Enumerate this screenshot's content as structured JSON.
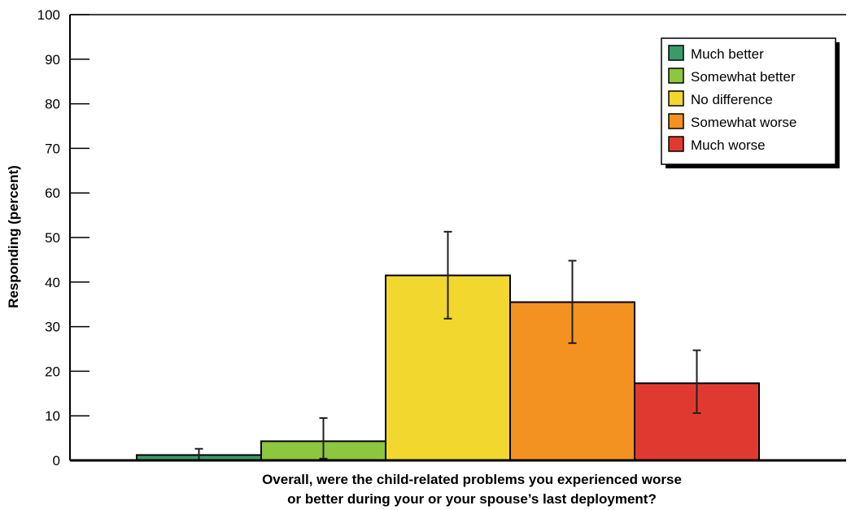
{
  "chart_data": {
    "type": "bar",
    "ylabel": "Responding (percent)",
    "xlabel_lines": [
      "Overall, were the child-related problems you experienced worse",
      "or better during your or your spouse’s last deployment?"
    ],
    "ylim": [
      0,
      100
    ],
    "yticks": [
      0,
      10,
      20,
      30,
      40,
      50,
      60,
      70,
      80,
      90,
      100
    ],
    "legend_position": "top-right",
    "series": [
      {
        "name": "Much better",
        "value": 1.2,
        "error_low": 0.1,
        "error_high": 2.6,
        "color": "#3a9b6a"
      },
      {
        "name": "Somewhat better",
        "value": 4.3,
        "error_low": 0.4,
        "error_high": 9.5,
        "color": "#8dc63f"
      },
      {
        "name": "No difference",
        "value": 41.5,
        "error_low": 31.8,
        "error_high": 51.3,
        "color": "#f2d82e"
      },
      {
        "name": "Somewhat worse",
        "value": 35.5,
        "error_low": 26.3,
        "error_high": 44.8,
        "color": "#f39221"
      },
      {
        "name": "Much worse",
        "value": 17.3,
        "error_low": 10.6,
        "error_high": 24.7,
        "color": "#e03a30"
      }
    ]
  }
}
